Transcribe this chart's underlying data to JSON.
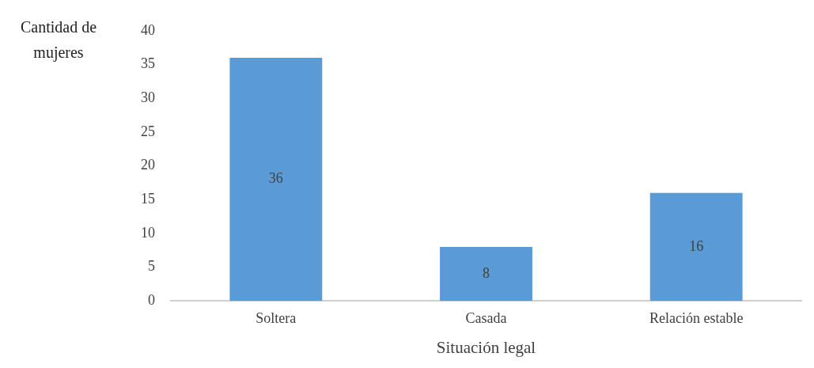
{
  "chart_data": {
    "type": "bar",
    "ylabel": "Cantidad de mujeres",
    "xlabel": "Situación legal",
    "categories": [
      "Soltera",
      "Casada",
      "Relación estable"
    ],
    "values": [
      36,
      8,
      16
    ],
    "color": "#5b9bd5",
    "ylim": [
      0,
      40
    ],
    "yticks": [
      0,
      5,
      10,
      15,
      20,
      25,
      30,
      35,
      40
    ],
    "grid": false,
    "legend": false,
    "data_labels": true
  }
}
